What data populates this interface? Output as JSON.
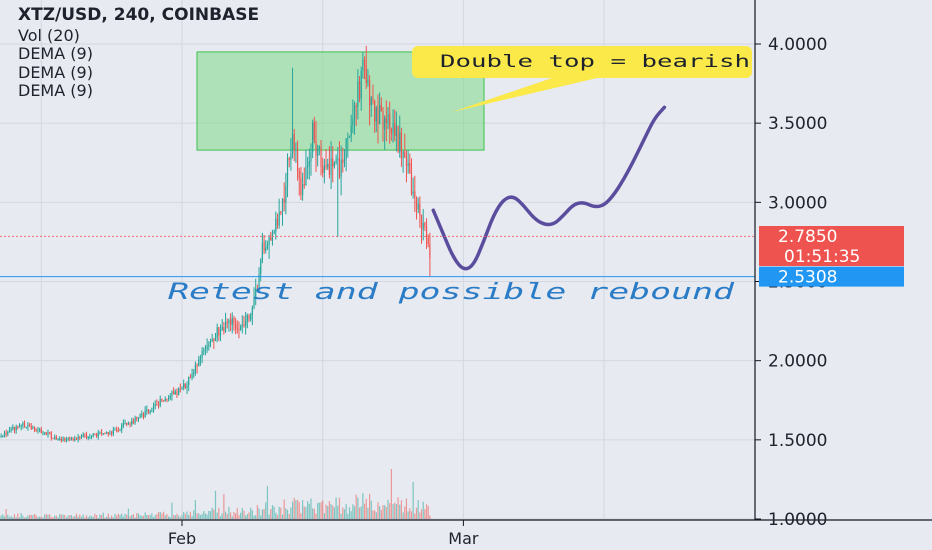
{
  "legend": {
    "title": "XTZ/USD, 240, COINBASE",
    "volume": "Vol (20)",
    "indicators": [
      "DEMA (9)",
      "DEMA (9)",
      "DEMA (9)"
    ]
  },
  "annotations": {
    "callout": "Double top = bearish",
    "retest": "Retest and possible rebound"
  },
  "price_labels": {
    "last": "2.7850",
    "countdown": "01:51:35",
    "line": "2.5308"
  },
  "colors": {
    "up": "#26a69a",
    "down": "#ef5350",
    "projection": "#5b4d9e",
    "callout": "#fbe94a",
    "zone": "#7fd88a",
    "retest_text": "#2a7cc7",
    "line_level": "#2196f3"
  },
  "chart_data": {
    "type": "candlestick",
    "symbol": "XTZ/USD",
    "interval": "240",
    "exchange": "COINBASE",
    "y_axis": {
      "ticks": [
        "4.0000",
        "3.5000",
        "3.0000",
        "2.5000",
        "2.0000",
        "1.5000",
        "1.0000"
      ],
      "range": [
        1.0,
        4.0
      ]
    },
    "x_axis": {
      "ticks": [
        "Feb",
        "Mar"
      ],
      "range_days": [
        -25,
        68
      ],
      "tick_days": [
        0,
        28
      ]
    },
    "price_path": [
      [
        -25,
        1.3
      ],
      [
        -20,
        1.45
      ],
      [
        -16,
        1.6
      ],
      [
        -12,
        1.5
      ],
      [
        -7,
        1.55
      ],
      [
        -4,
        1.65
      ],
      [
        -2,
        1.75
      ],
      [
        0,
        1.82
      ],
      [
        1,
        1.9
      ],
      [
        2,
        2.05
      ],
      [
        3,
        2.15
      ],
      [
        4,
        2.2
      ],
      [
        5,
        2.25
      ],
      [
        6,
        2.2
      ],
      [
        7,
        2.3
      ],
      [
        8,
        2.7
      ],
      [
        9,
        2.75
      ],
      [
        10,
        3.0
      ],
      [
        11,
        3.4
      ],
      [
        12,
        3.05
      ],
      [
        13,
        3.45
      ],
      [
        14,
        3.2
      ],
      [
        15,
        3.2
      ],
      [
        16,
        3.25
      ],
      [
        17,
        3.55
      ],
      [
        18,
        3.8
      ],
      [
        19,
        3.6
      ],
      [
        20,
        3.55
      ],
      [
        21,
        3.5
      ],
      [
        22,
        3.3
      ],
      [
        23,
        3.05
      ],
      [
        24,
        2.85
      ],
      [
        24.8,
        2.58
      ]
    ],
    "volume_scale": [
      0,
      1
    ],
    "projection": [
      [
        25,
        2.95
      ],
      [
        26,
        2.8
      ],
      [
        27,
        2.65
      ],
      [
        28,
        2.57
      ],
      [
        29,
        2.6
      ],
      [
        30,
        2.75
      ],
      [
        31,
        2.92
      ],
      [
        32,
        3.02
      ],
      [
        33,
        3.04
      ],
      [
        34,
        2.98
      ],
      [
        35,
        2.9
      ],
      [
        36,
        2.86
      ],
      [
        37,
        2.86
      ],
      [
        38,
        2.92
      ],
      [
        39,
        2.99
      ],
      [
        40,
        3.0
      ],
      [
        41,
        2.97
      ],
      [
        42,
        2.98
      ],
      [
        43,
        3.05
      ],
      [
        44,
        3.15
      ],
      [
        45,
        3.27
      ],
      [
        46,
        3.4
      ],
      [
        47,
        3.53
      ],
      [
        48,
        3.6
      ]
    ],
    "zone": {
      "day_from": 1.5,
      "day_to": 30,
      "price_low": 3.33,
      "price_high": 3.95
    },
    "last_price": 2.785,
    "horizontal_line": 2.5308
  }
}
